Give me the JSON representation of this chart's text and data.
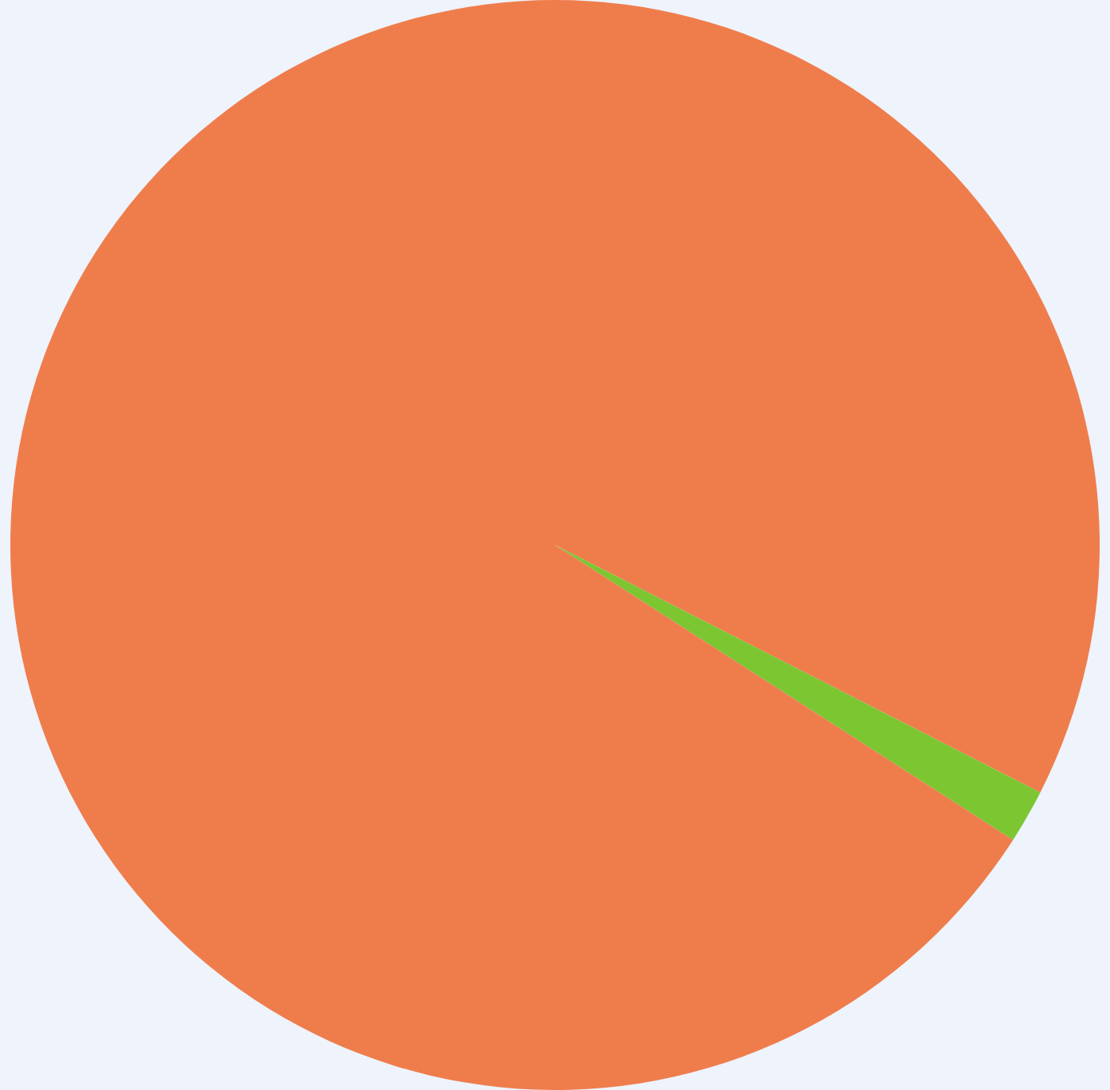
{
  "chart_data": {
    "type": "pie",
    "categories": [
      null,
      null,
      null
    ],
    "values": [
      32.5,
      1.6,
      65.9
    ],
    "colors": [
      "#ef7d4c",
      "#7cc631",
      "#ef7d4c"
    ],
    "legend": false
  }
}
